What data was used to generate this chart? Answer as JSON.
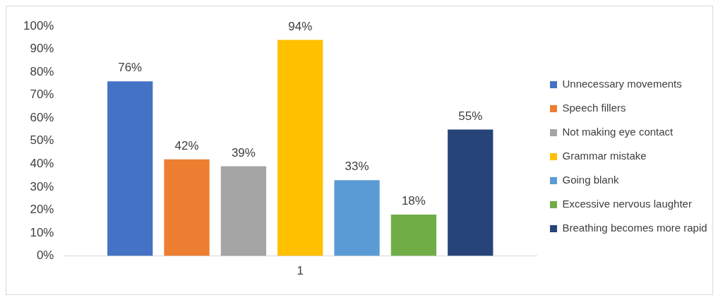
{
  "chart_data": {
    "type": "bar",
    "categories": [
      "1"
    ],
    "series": [
      {
        "name": "Unnecessary movements",
        "color": "#4472c4",
        "values": [
          76
        ],
        "value_labels": [
          "76%"
        ]
      },
      {
        "name": "Speech fillers",
        "color": "#ed7d31",
        "values": [
          42
        ],
        "value_labels": [
          "42%"
        ]
      },
      {
        "name": "Not making eye contact",
        "color": "#a5a5a5",
        "values": [
          39
        ],
        "value_labels": [
          "39%"
        ]
      },
      {
        "name": "Grammar mistake",
        "color": "#ffc000",
        "values": [
          94
        ],
        "value_labels": [
          "94%"
        ]
      },
      {
        "name": "Going blank",
        "color": "#5b9bd5",
        "values": [
          33
        ],
        "value_labels": [
          "33%"
        ]
      },
      {
        "name": "Excessive nervous laughter",
        "color": "#70ad47",
        "values": [
          18
        ],
        "value_labels": [
          "18%"
        ]
      },
      {
        "name": "Breathing becomes more rapid",
        "color": "#264478",
        "values": [
          55
        ],
        "value_labels": [
          "55%"
        ]
      }
    ],
    "ylim": [
      0,
      100
    ],
    "yticks": [
      {
        "value": 0,
        "label": "0%"
      },
      {
        "value": 10,
        "label": "10%"
      },
      {
        "value": 20,
        "label": "20%"
      },
      {
        "value": 30,
        "label": "30%"
      },
      {
        "value": 40,
        "label": "40%"
      },
      {
        "value": 50,
        "label": "50%"
      },
      {
        "value": 60,
        "label": "60%"
      },
      {
        "value": 70,
        "label": "70%"
      },
      {
        "value": 80,
        "label": "80%"
      },
      {
        "value": 90,
        "label": "90%"
      },
      {
        "value": 100,
        "label": "100%"
      }
    ],
    "grid": false,
    "legend": "right"
  }
}
